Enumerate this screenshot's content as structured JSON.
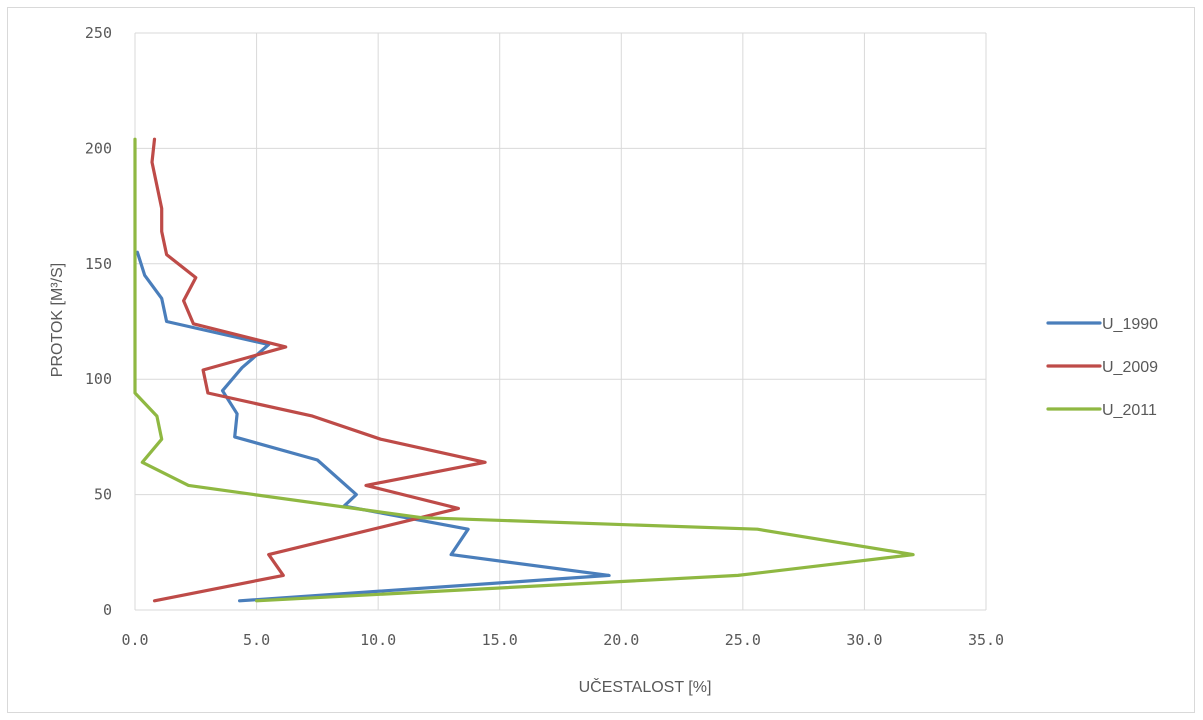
{
  "chart_data": {
    "type": "line",
    "title": "",
    "xlabel": "UČESTALOST [%]",
    "ylabel": "PROTOK [M³/S]",
    "xlim": [
      0,
      35
    ],
    "ylim": [
      0,
      250
    ],
    "x_ticks": [
      "0.0",
      "5.0",
      "10.0",
      "15.0",
      "20.0",
      "25.0",
      "30.0",
      "35.0"
    ],
    "y_ticks": [
      "0",
      "50",
      "100",
      "150",
      "200",
      "250"
    ],
    "grid": true,
    "legend_position": "right",
    "series": [
      {
        "name": "U_1990",
        "color": "#4a7ebb",
        "points": [
          [
            4.3,
            4
          ],
          [
            19.5,
            15
          ],
          [
            13.0,
            24
          ],
          [
            13.7,
            35
          ],
          [
            8.6,
            45
          ],
          [
            9.1,
            50
          ],
          [
            7.5,
            65
          ],
          [
            4.1,
            75
          ],
          [
            4.2,
            85
          ],
          [
            3.6,
            95
          ],
          [
            4.4,
            105
          ],
          [
            5.5,
            115
          ],
          [
            1.3,
            125
          ],
          [
            1.1,
            135
          ],
          [
            0.4,
            145
          ],
          [
            0.1,
            155
          ]
        ]
      },
      {
        "name": "U_2009",
        "color": "#be4b48",
        "points": [
          [
            0.8,
            4
          ],
          [
            6.1,
            15
          ],
          [
            5.5,
            24
          ],
          [
            13.3,
            44
          ],
          [
            9.5,
            54
          ],
          [
            14.4,
            64
          ],
          [
            10.1,
            74
          ],
          [
            7.3,
            84
          ],
          [
            3.0,
            94
          ],
          [
            2.8,
            104
          ],
          [
            6.2,
            114
          ],
          [
            2.4,
            124
          ],
          [
            2.0,
            134
          ],
          [
            2.5,
            144
          ],
          [
            1.3,
            154
          ],
          [
            1.1,
            164
          ],
          [
            1.1,
            174
          ],
          [
            0.7,
            194
          ],
          [
            0.8,
            204
          ]
        ]
      },
      {
        "name": "U_2011",
        "color": "#8fb842",
        "points": [
          [
            5.0,
            4
          ],
          [
            24.8,
            15
          ],
          [
            32.0,
            24
          ],
          [
            25.6,
            35
          ],
          [
            11.8,
            40
          ],
          [
            4.9,
            50
          ],
          [
            2.2,
            54
          ],
          [
            0.3,
            64
          ],
          [
            1.1,
            74
          ],
          [
            0.9,
            84
          ],
          [
            0.0,
            94
          ],
          [
            0.0,
            204
          ]
        ]
      }
    ]
  }
}
